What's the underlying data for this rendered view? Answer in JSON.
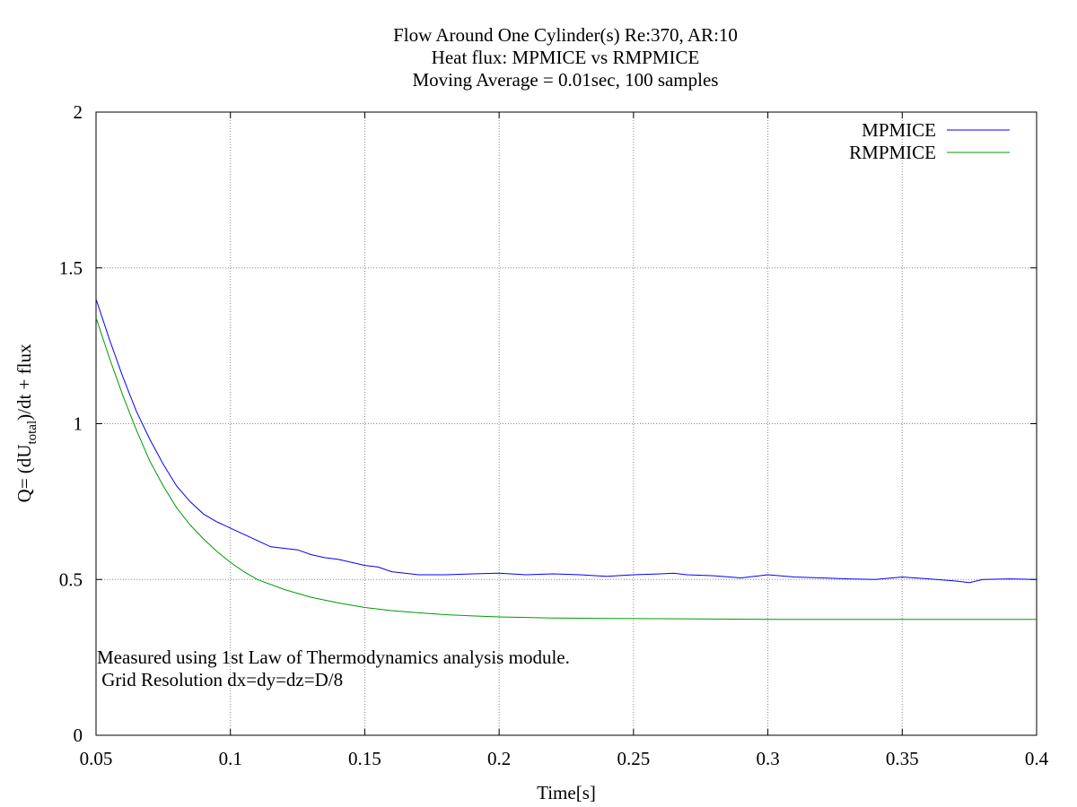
{
  "chart_data": {
    "type": "line",
    "title_lines": [
      "Flow Around One Cylinder(s) Re:370, AR:10",
      "Heat flux: MPMICE vs RMPMICE",
      "Moving Average = 0.01sec, 100 samples"
    ],
    "xlabel": "Time[s]",
    "ylabel": {
      "prefix": "Q= (dU",
      "subscript": "total",
      "suffix": ")/dt + flux"
    },
    "xlim": [
      0.05,
      0.4
    ],
    "ylim": [
      0,
      2
    ],
    "x_ticks": [
      0.05,
      0.1,
      0.15,
      0.2,
      0.25,
      0.3,
      0.35,
      0.4
    ],
    "x_tick_labels": [
      "0.05",
      "0.1",
      "0.15",
      "0.2",
      "0.25",
      "0.3",
      "0.35",
      "0.4"
    ],
    "y_ticks": [
      0,
      0.5,
      1,
      1.5,
      2
    ],
    "y_tick_labels": [
      "0",
      "0.5",
      "1",
      "1.5",
      "2"
    ],
    "grid": true,
    "legend_position": "top-right",
    "annotation_lines": [
      "Measured using 1st Law of Thermodynamics analysis module.",
      " Grid Resolution dx=dy=dz=D/8"
    ],
    "series": [
      {
        "name": "MPMICE",
        "color": "#0000ff",
        "x": [
          0.05,
          0.055,
          0.06,
          0.065,
          0.07,
          0.075,
          0.08,
          0.085,
          0.09,
          0.095,
          0.1,
          0.105,
          0.11,
          0.115,
          0.12,
          0.125,
          0.13,
          0.135,
          0.14,
          0.145,
          0.15,
          0.155,
          0.16,
          0.165,
          0.17,
          0.18,
          0.19,
          0.2,
          0.21,
          0.22,
          0.23,
          0.24,
          0.25,
          0.26,
          0.265,
          0.27,
          0.28,
          0.29,
          0.3,
          0.31,
          0.32,
          0.33,
          0.34,
          0.35,
          0.36,
          0.37,
          0.375,
          0.38,
          0.39,
          0.4
        ],
        "y": [
          1.4,
          1.27,
          1.15,
          1.04,
          0.95,
          0.87,
          0.8,
          0.75,
          0.71,
          0.685,
          0.665,
          0.645,
          0.625,
          0.605,
          0.6,
          0.595,
          0.58,
          0.57,
          0.565,
          0.555,
          0.545,
          0.54,
          0.525,
          0.52,
          0.515,
          0.515,
          0.518,
          0.52,
          0.515,
          0.518,
          0.515,
          0.51,
          0.515,
          0.518,
          0.52,
          0.515,
          0.512,
          0.505,
          0.515,
          0.508,
          0.505,
          0.502,
          0.5,
          0.508,
          0.502,
          0.495,
          0.49,
          0.5,
          0.502,
          0.5
        ]
      },
      {
        "name": "RMPMICE",
        "color": "#009900",
        "x": [
          0.05,
          0.055,
          0.06,
          0.065,
          0.07,
          0.075,
          0.08,
          0.085,
          0.09,
          0.095,
          0.1,
          0.105,
          0.11,
          0.12,
          0.13,
          0.14,
          0.15,
          0.16,
          0.17,
          0.18,
          0.19,
          0.2,
          0.21,
          0.22,
          0.24,
          0.26,
          0.28,
          0.3,
          0.32,
          0.35,
          0.4
        ],
        "y": [
          1.34,
          1.21,
          1.09,
          0.98,
          0.88,
          0.8,
          0.73,
          0.675,
          0.63,
          0.59,
          0.555,
          0.525,
          0.5,
          0.468,
          0.443,
          0.425,
          0.41,
          0.4,
          0.393,
          0.387,
          0.383,
          0.38,
          0.378,
          0.376,
          0.375,
          0.374,
          0.373,
          0.372,
          0.372,
          0.372,
          0.372
        ]
      }
    ]
  }
}
